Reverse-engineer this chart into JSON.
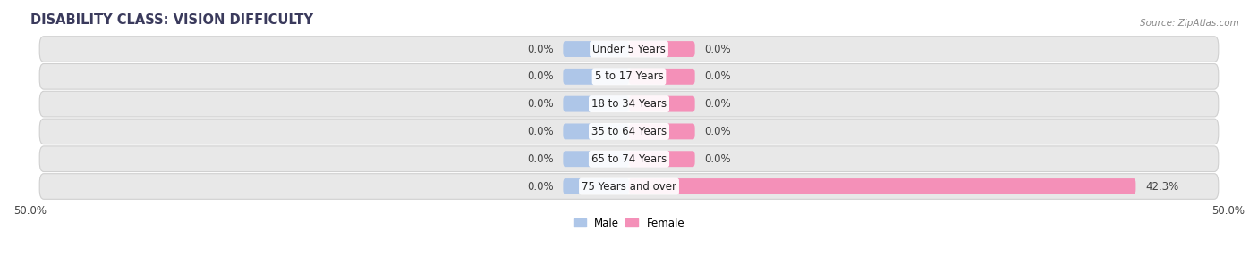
{
  "title": "DISABILITY CLASS: VISION DIFFICULTY",
  "source": "Source: ZipAtlas.com",
  "categories": [
    "Under 5 Years",
    "5 to 17 Years",
    "18 to 34 Years",
    "35 to 64 Years",
    "65 to 74 Years",
    "75 Years and over"
  ],
  "male_values": [
    0.0,
    0.0,
    0.0,
    0.0,
    0.0,
    0.0
  ],
  "female_values": [
    0.0,
    0.0,
    0.0,
    0.0,
    0.0,
    42.3
  ],
  "male_color": "#aec6e8",
  "female_color": "#f490b8",
  "male_stub": 5.5,
  "female_stub": 5.5,
  "xlim": [
    -50,
    50
  ],
  "xticklabels": [
    "50.0%",
    "50.0%"
  ],
  "bar_height": 0.58,
  "background_color": "#ffffff",
  "row_color": "#e8e8e8",
  "row_edge_color": "#d0d0d0",
  "title_fontsize": 10.5,
  "label_fontsize": 8.5,
  "value_fontsize": 8.5,
  "tick_fontsize": 8.5,
  "legend_fontsize": 8.5
}
